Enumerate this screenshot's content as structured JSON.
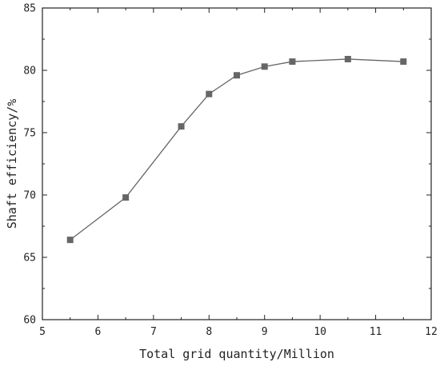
{
  "chart_data": {
    "type": "line",
    "title": "",
    "xlabel": "Total grid quantity/Million",
    "ylabel": "Shaft efficiency/%",
    "xlim": [
      5,
      12
    ],
    "ylim": [
      60,
      85
    ],
    "x_ticks": [
      5,
      6,
      7,
      8,
      9,
      10,
      11,
      12
    ],
    "y_ticks": [
      60,
      65,
      70,
      75,
      80,
      85
    ],
    "x_tick_labels": [
      "5",
      "6",
      "7",
      "8",
      "9",
      "10",
      "11",
      "12"
    ],
    "y_tick_labels": [
      "60",
      "65",
      "70",
      "75",
      "80",
      "85"
    ],
    "grid": false,
    "marker": "square",
    "series": [
      {
        "x": [
          5.5,
          6.5,
          7.5,
          8.0,
          8.5,
          9.0,
          9.5,
          10.5,
          11.5
        ],
        "y": [
          66.4,
          69.8,
          75.5,
          78.1,
          79.6,
          80.3,
          80.7,
          80.9,
          80.7
        ],
        "color": "#666666"
      }
    ]
  }
}
